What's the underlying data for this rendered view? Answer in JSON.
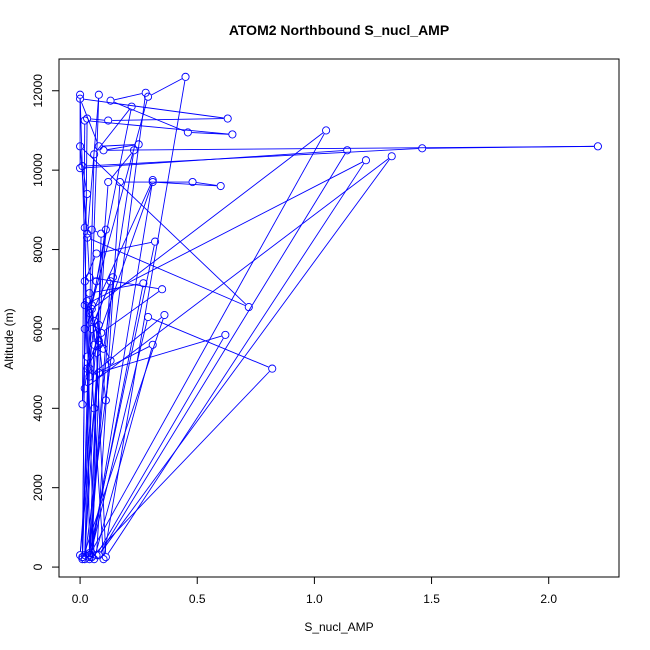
{
  "chart_data": {
    "type": "line",
    "title": "ATOM2 Northbound S_nucl_AMP",
    "xlabel": "S_nucl_AMP",
    "ylabel": "Altitude (m)",
    "xlim": [
      -0.09,
      2.3
    ],
    "ylim": [
      -250,
      12800
    ],
    "x_ticks": [
      0.0,
      0.5,
      1.0,
      1.5,
      2.0
    ],
    "x_tick_labels": [
      "0.0",
      "0.5",
      "1.0",
      "1.5",
      "2.0"
    ],
    "y_ticks": [
      0,
      2000,
      4000,
      6000,
      8000,
      10000,
      12000
    ],
    "y_tick_labels": [
      "0",
      "2000",
      "4000",
      "6000",
      "8000",
      "10000",
      "12000"
    ],
    "grid": false,
    "legend": "none",
    "series_color": "#0000ff",
    "series": [
      {
        "marker": "open-circle",
        "points": [
          [
            0.01,
            250
          ],
          [
            0.03,
            11300
          ],
          [
            0.12,
            11250
          ],
          [
            0.63,
            11300
          ],
          [
            0.0,
            11800
          ],
          [
            0.08,
            10600
          ],
          [
            0.25,
            10650
          ],
          [
            0.1,
            10500
          ],
          [
            2.21,
            10600
          ],
          [
            1.46,
            10550
          ],
          [
            0.01,
            10100
          ],
          [
            0.03,
            9400
          ],
          [
            0.02,
            8550
          ],
          [
            0.05,
            8500
          ],
          [
            0.09,
            8400
          ],
          [
            0.05,
            350
          ],
          [
            0.31,
            9750
          ],
          [
            0.02,
            6000
          ],
          [
            0.01,
            250
          ],
          [
            0.06,
            10400
          ],
          [
            0.22,
            11600
          ],
          [
            0.05,
            6600
          ],
          [
            0.06,
            5600
          ],
          [
            0.02,
            200
          ],
          [
            0.28,
            11950
          ],
          [
            0.13,
            11750
          ],
          [
            0.46,
            10950
          ],
          [
            0.65,
            10900
          ],
          [
            0.02,
            11250
          ],
          [
            0.01,
            4100
          ],
          [
            0.03,
            6700
          ],
          [
            0.1,
            200
          ],
          [
            0.45,
            12350
          ],
          [
            0.29,
            11850
          ],
          [
            0.04,
            6400
          ],
          [
            0.07,
            7200
          ],
          [
            0.11,
            8500
          ],
          [
            0.02,
            300
          ],
          [
            0.04,
            5000
          ],
          [
            0.06,
            6200
          ],
          [
            0.14,
            7300
          ],
          [
            0.04,
            250
          ],
          [
            0.08,
            6100
          ],
          [
            0.1,
            5500
          ],
          [
            0.23,
            10500
          ],
          [
            0.12,
            9700
          ],
          [
            0.0,
            300
          ],
          [
            0.06,
            4000
          ],
          [
            0.08,
            4900
          ],
          [
            0.62,
            5850
          ],
          [
            0.07,
            300
          ],
          [
            0.17,
            9700
          ],
          [
            0.48,
            9700
          ],
          [
            0.6,
            9600
          ],
          [
            0.31,
            9700
          ],
          [
            0.03,
            5000
          ],
          [
            0.08,
            5600
          ],
          [
            0.05,
            6500
          ],
          [
            1.05,
            11000
          ],
          [
            0.04,
            300
          ],
          [
            0.03,
            5300
          ],
          [
            0.02,
            7200
          ],
          [
            0.07,
            7900
          ],
          [
            0.32,
            8200
          ],
          [
            0.04,
            350
          ],
          [
            0.08,
            5700
          ],
          [
            0.11,
            4200
          ],
          [
            0.13,
            5200
          ],
          [
            0.02,
            6600
          ],
          [
            1.22,
            10250
          ],
          [
            0.11,
            250
          ],
          [
            0.07,
            5400
          ],
          [
            0.04,
            6900
          ],
          [
            0.27,
            7150
          ],
          [
            0.04,
            200
          ],
          [
            0.29,
            6300
          ],
          [
            0.82,
            5000
          ],
          [
            0.05,
            250
          ],
          [
            0.09,
            5900
          ],
          [
            0.35,
            7000
          ],
          [
            0.04,
            7300
          ],
          [
            0.03,
            8400
          ],
          [
            0.0,
            10600
          ],
          [
            0.72,
            6550
          ],
          [
            0.03,
            8300
          ],
          [
            0.08,
            11900
          ],
          [
            0.01,
            200
          ],
          [
            0.36,
            6350
          ],
          [
            0.04,
            4800
          ],
          [
            0.31,
            5600
          ],
          [
            0.06,
            200
          ],
          [
            0.0,
            11900
          ],
          [
            0.0,
            10050
          ],
          [
            1.14,
            10500
          ],
          [
            0.08,
            300
          ],
          [
            1.33,
            10350
          ],
          [
            0.02,
            4500
          ],
          [
            0.05,
            6000
          ],
          [
            0.13,
            7200
          ],
          [
            0.04,
            300
          ]
        ]
      }
    ]
  }
}
